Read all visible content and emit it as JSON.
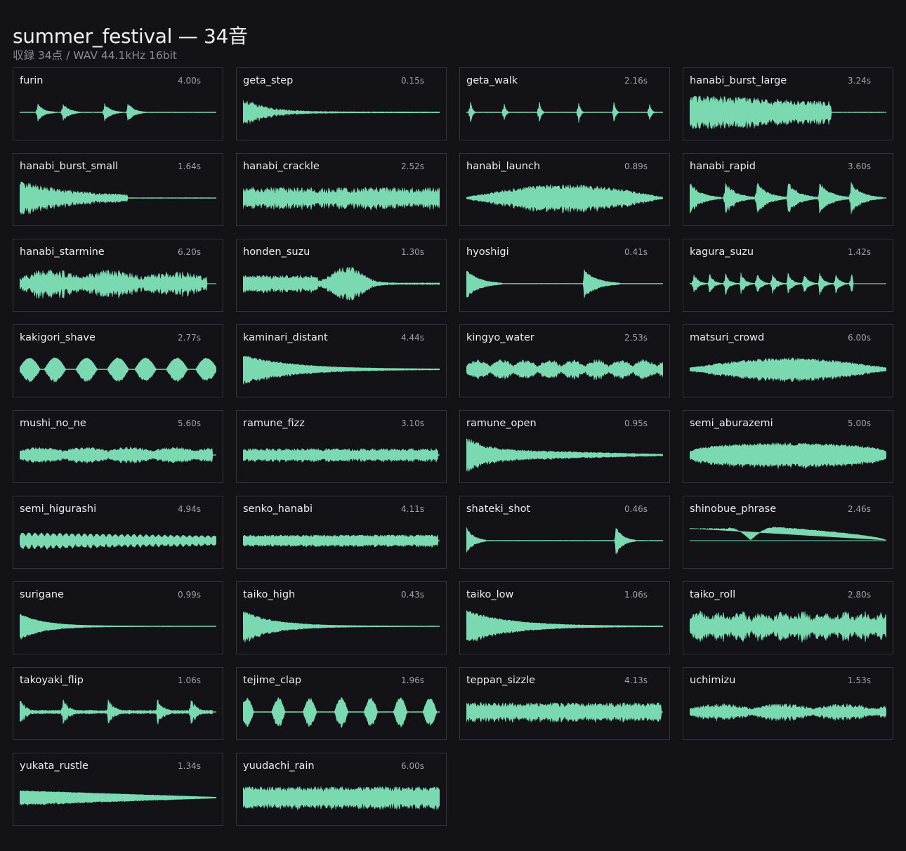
{
  "header": {
    "title": "summer_festival — 34音",
    "subtitle": "収録 34点  /  WAV 44.1kHz 16bit"
  },
  "colors": {
    "background": "#131317",
    "card_border": "#34343c",
    "waveform": "#7ad9b0"
  },
  "sounds": [
    {
      "name": "furin",
      "duration": "4.00s"
    },
    {
      "name": "geta_step",
      "duration": "0.15s"
    },
    {
      "name": "geta_walk",
      "duration": "2.16s"
    },
    {
      "name": "hanabi_burst_large",
      "duration": "3.24s"
    },
    {
      "name": "hanabi_burst_small",
      "duration": "1.64s"
    },
    {
      "name": "hanabi_crackle",
      "duration": "2.52s"
    },
    {
      "name": "hanabi_launch",
      "duration": "0.89s"
    },
    {
      "name": "hanabi_rapid",
      "duration": "3.60s"
    },
    {
      "name": "hanabi_starmine",
      "duration": "6.20s"
    },
    {
      "name": "honden_suzu",
      "duration": "1.30s"
    },
    {
      "name": "hyoshigi",
      "duration": "0.41s"
    },
    {
      "name": "kagura_suzu",
      "duration": "1.42s"
    },
    {
      "name": "kakigori_shave",
      "duration": "2.77s"
    },
    {
      "name": "kaminari_distant",
      "duration": "4.44s"
    },
    {
      "name": "kingyo_water",
      "duration": "2.53s"
    },
    {
      "name": "matsuri_crowd",
      "duration": "6.00s"
    },
    {
      "name": "mushi_no_ne",
      "duration": "5.60s"
    },
    {
      "name": "ramune_fizz",
      "duration": "3.10s"
    },
    {
      "name": "ramune_open",
      "duration": "0.95s"
    },
    {
      "name": "semi_aburazemi",
      "duration": "5.00s"
    },
    {
      "name": "semi_higurashi",
      "duration": "4.94s"
    },
    {
      "name": "senko_hanabi",
      "duration": "4.11s"
    },
    {
      "name": "shateki_shot",
      "duration": "0.46s"
    },
    {
      "name": "shinobue_phrase",
      "duration": "2.46s"
    },
    {
      "name": "surigane",
      "duration": "0.99s"
    },
    {
      "name": "taiko_high",
      "duration": "0.43s"
    },
    {
      "name": "taiko_low",
      "duration": "1.06s"
    },
    {
      "name": "taiko_roll",
      "duration": "2.80s"
    },
    {
      "name": "takoyaki_flip",
      "duration": "1.06s"
    },
    {
      "name": "tejime_clap",
      "duration": "1.96s"
    },
    {
      "name": "teppan_sizzle",
      "duration": "4.13s"
    },
    {
      "name": "uchimizu",
      "duration": "1.53s"
    },
    {
      "name": "yukata_rustle",
      "duration": "1.34s"
    },
    {
      "name": "yuudachi_rain",
      "duration": "6.00s"
    }
  ]
}
